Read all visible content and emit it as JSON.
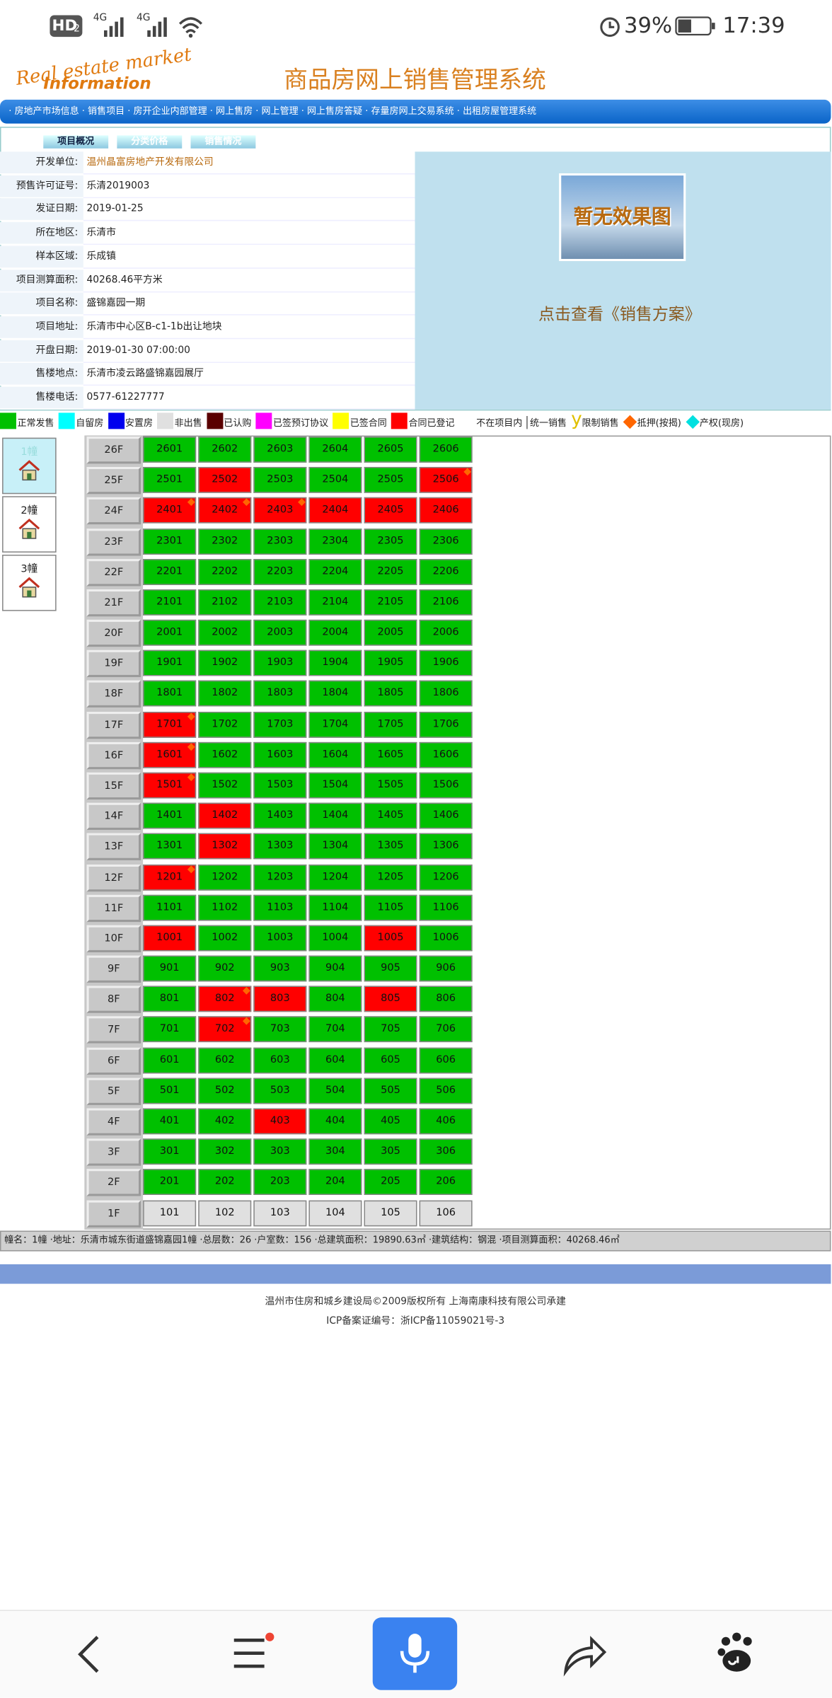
{
  "status_bar": {
    "hd": "HD",
    "sim": "2",
    "net1": "4G",
    "net2": "4G",
    "battery": "39%",
    "time": "17:39"
  },
  "header": {
    "logo_top": "Real estate market",
    "logo_bottom": "Information",
    "title": "商品房网上销售管理系统"
  },
  "nav": "· 房地产市场信息 · 销售项目 · 房开企业内部管理 · 网上售房 · 网上管理 · 网上售房答疑 · 存量房网上交易系统 · 出租房屋管理系统",
  "tabs": [
    "项目概况",
    "分类价格",
    "销售情况"
  ],
  "info": [
    [
      "开发单位:",
      "温州晶富房地产开发有限公司"
    ],
    [
      "预售许可证号:",
      "乐清2019003"
    ],
    [
      "发证日期:",
      "2019-01-25"
    ],
    [
      "所在地区:",
      "乐清市"
    ],
    [
      "样本区域:",
      "乐成镇"
    ],
    [
      "项目测算面积:",
      "40268.46平方米"
    ],
    [
      "项目名称:",
      "盛锦嘉园一期"
    ],
    [
      "项目地址:",
      "乐清市中心区B-c1-1b出让地块"
    ],
    [
      "开盘日期:",
      "2019-01-30 07:00:00"
    ],
    [
      "售楼地点:",
      "乐清市凌云路盛锦嘉园展厅"
    ],
    [
      "售楼电话:",
      "0577-61227777"
    ]
  ],
  "effect_image": "暂无效果图",
  "sale_plan_link": "点击查看《销售方案》",
  "legend": [
    {
      "label": "正常发售",
      "color": "#00c000"
    },
    {
      "label": "自留房",
      "color": "#00ffff"
    },
    {
      "label": "安置房",
      "color": "#0000ee"
    },
    {
      "label": "非出售",
      "color": "#e0e0e0"
    },
    {
      "label": "已认购",
      "color": "#5a0000"
    },
    {
      "label": "已签预订协议",
      "color": "#ff00ff"
    },
    {
      "label": "已签合同",
      "color": "#ffff00"
    },
    {
      "label": "合同已登记",
      "color": "#ff0000"
    },
    {
      "label": "不在项目内",
      "color": "#ffffff"
    },
    {
      "label": "统一销售"
    },
    {
      "label": "限制销售",
      "glyph": "y",
      "color": "#e0c000"
    },
    {
      "label": "抵押(按揭)",
      "diamond": "#ff6600"
    },
    {
      "label": "产权(现房)",
      "diamond": "#00e0e0"
    }
  ],
  "buildings": [
    "1幢",
    "2幢",
    "3幢"
  ],
  "floors": [
    {
      "floor": "26F",
      "units": [
        {
          "no": "2601",
          "status": 0
        },
        {
          "no": "2602",
          "status": 0
        },
        {
          "no": "2603",
          "status": 0
        },
        {
          "no": "2604",
          "status": 0
        },
        {
          "no": "2605",
          "status": 0
        },
        {
          "no": "2606",
          "status": 0
        }
      ]
    },
    {
      "floor": "25F",
      "units": [
        {
          "no": "2501",
          "status": 0
        },
        {
          "no": "2502",
          "status": 7
        },
        {
          "no": "2503",
          "status": 0
        },
        {
          "no": "2504",
          "status": 0
        },
        {
          "no": "2505",
          "status": 0
        },
        {
          "no": "2506",
          "status": 7,
          "pledged": true
        }
      ]
    },
    {
      "floor": "24F",
      "units": [
        {
          "no": "2401",
          "status": 7,
          "pledged": true
        },
        {
          "no": "2402",
          "status": 7,
          "pledged": true
        },
        {
          "no": "2403",
          "status": 7,
          "pledged": true
        },
        {
          "no": "2404",
          "status": 7
        },
        {
          "no": "2405",
          "status": 7
        },
        {
          "no": "2406",
          "status": 7
        }
      ]
    },
    {
      "floor": "23F",
      "units": [
        {
          "no": "2301",
          "status": 0
        },
        {
          "no": "2302",
          "status": 0
        },
        {
          "no": "2303",
          "status": 0
        },
        {
          "no": "2304",
          "status": 0
        },
        {
          "no": "2305",
          "status": 0
        },
        {
          "no": "2306",
          "status": 0
        }
      ]
    },
    {
      "floor": "22F",
      "units": [
        {
          "no": "2201",
          "status": 0
        },
        {
          "no": "2202",
          "status": 0
        },
        {
          "no": "2203",
          "status": 0
        },
        {
          "no": "2204",
          "status": 0
        },
        {
          "no": "2205",
          "status": 0
        },
        {
          "no": "2206",
          "status": 0
        }
      ]
    },
    {
      "floor": "21F",
      "units": [
        {
          "no": "2101",
          "status": 0
        },
        {
          "no": "2102",
          "status": 0
        },
        {
          "no": "2103",
          "status": 0
        },
        {
          "no": "2104",
          "status": 0
        },
        {
          "no": "2105",
          "status": 0
        },
        {
          "no": "2106",
          "status": 0
        }
      ]
    },
    {
      "floor": "20F",
      "units": [
        {
          "no": "2001",
          "status": 0
        },
        {
          "no": "2002",
          "status": 0
        },
        {
          "no": "2003",
          "status": 0
        },
        {
          "no": "2004",
          "status": 0
        },
        {
          "no": "2005",
          "status": 0
        },
        {
          "no": "2006",
          "status": 0
        }
      ]
    },
    {
      "floor": "19F",
      "units": [
        {
          "no": "1901",
          "status": 0
        },
        {
          "no": "1902",
          "status": 0
        },
        {
          "no": "1903",
          "status": 0
        },
        {
          "no": "1904",
          "status": 0
        },
        {
          "no": "1905",
          "status": 0
        },
        {
          "no": "1906",
          "status": 0
        }
      ]
    },
    {
      "floor": "18F",
      "units": [
        {
          "no": "1801",
          "status": 0
        },
        {
          "no": "1802",
          "status": 0
        },
        {
          "no": "1803",
          "status": 0
        },
        {
          "no": "1804",
          "status": 0
        },
        {
          "no": "1805",
          "status": 0
        },
        {
          "no": "1806",
          "status": 0
        }
      ]
    },
    {
      "floor": "17F",
      "units": [
        {
          "no": "1701",
          "status": 7,
          "pledged": true
        },
        {
          "no": "1702",
          "status": 0
        },
        {
          "no": "1703",
          "status": 0
        },
        {
          "no": "1704",
          "status": 0
        },
        {
          "no": "1705",
          "status": 0
        },
        {
          "no": "1706",
          "status": 0
        }
      ]
    },
    {
      "floor": "16F",
      "units": [
        {
          "no": "1601",
          "status": 7,
          "pledged": true
        },
        {
          "no": "1602",
          "status": 0
        },
        {
          "no": "1603",
          "status": 0
        },
        {
          "no": "1604",
          "status": 0
        },
        {
          "no": "1605",
          "status": 0
        },
        {
          "no": "1606",
          "status": 0
        }
      ]
    },
    {
      "floor": "15F",
      "units": [
        {
          "no": "1501",
          "status": 7,
          "pledged": true
        },
        {
          "no": "1502",
          "status": 0
        },
        {
          "no": "1503",
          "status": 0
        },
        {
          "no": "1504",
          "status": 0
        },
        {
          "no": "1505",
          "status": 0
        },
        {
          "no": "1506",
          "status": 0
        }
      ]
    },
    {
      "floor": "14F",
      "units": [
        {
          "no": "1401",
          "status": 0
        },
        {
          "no": "1402",
          "status": 7
        },
        {
          "no": "1403",
          "status": 0
        },
        {
          "no": "1404",
          "status": 0
        },
        {
          "no": "1405",
          "status": 0
        },
        {
          "no": "1406",
          "status": 0
        }
      ]
    },
    {
      "floor": "13F",
      "units": [
        {
          "no": "1301",
          "status": 0
        },
        {
          "no": "1302",
          "status": 7
        },
        {
          "no": "1303",
          "status": 0
        },
        {
          "no": "1304",
          "status": 0
        },
        {
          "no": "1305",
          "status": 0
        },
        {
          "no": "1306",
          "status": 0
        }
      ]
    },
    {
      "floor": "12F",
      "units": [
        {
          "no": "1201",
          "status": 7,
          "pledged": true
        },
        {
          "no": "1202",
          "status": 0
        },
        {
          "no": "1203",
          "status": 0
        },
        {
          "no": "1204",
          "status": 0
        },
        {
          "no": "1205",
          "status": 0
        },
        {
          "no": "1206",
          "status": 0
        }
      ]
    },
    {
      "floor": "11F",
      "units": [
        {
          "no": "1101",
          "status": 0
        },
        {
          "no": "1102",
          "status": 0
        },
        {
          "no": "1103",
          "status": 0
        },
        {
          "no": "1104",
          "status": 0
        },
        {
          "no": "1105",
          "status": 0
        },
        {
          "no": "1106",
          "status": 0
        }
      ]
    },
    {
      "floor": "10F",
      "units": [
        {
          "no": "1001",
          "status": 7
        },
        {
          "no": "1002",
          "status": 0
        },
        {
          "no": "1003",
          "status": 0
        },
        {
          "no": "1004",
          "status": 0
        },
        {
          "no": "1005",
          "status": 7
        },
        {
          "no": "1006",
          "status": 0
        }
      ]
    },
    {
      "floor": "9F",
      "units": [
        {
          "no": "901",
          "status": 0
        },
        {
          "no": "902",
          "status": 0
        },
        {
          "no": "903",
          "status": 0
        },
        {
          "no": "904",
          "status": 0
        },
        {
          "no": "905",
          "status": 0
        },
        {
          "no": "906",
          "status": 0
        }
      ]
    },
    {
      "floor": "8F",
      "units": [
        {
          "no": "801",
          "status": 0
        },
        {
          "no": "802",
          "status": 7,
          "pledged": true
        },
        {
          "no": "803",
          "status": 7
        },
        {
          "no": "804",
          "status": 0
        },
        {
          "no": "805",
          "status": 7
        },
        {
          "no": "806",
          "status": 0
        }
      ]
    },
    {
      "floor": "7F",
      "units": [
        {
          "no": "701",
          "status": 0
        },
        {
          "no": "702",
          "status": 7,
          "pledged": true
        },
        {
          "no": "703",
          "status": 0
        },
        {
          "no": "704",
          "status": 0
        },
        {
          "no": "705",
          "status": 0
        },
        {
          "no": "706",
          "status": 0
        }
      ]
    },
    {
      "floor": "6F",
      "units": [
        {
          "no": "601",
          "status": 0
        },
        {
          "no": "602",
          "status": 0
        },
        {
          "no": "603",
          "status": 0
        },
        {
          "no": "604",
          "status": 0
        },
        {
          "no": "605",
          "status": 0
        },
        {
          "no": "606",
          "status": 0
        }
      ]
    },
    {
      "floor": "5F",
      "units": [
        {
          "no": "501",
          "status": 0
        },
        {
          "no": "502",
          "status": 0
        },
        {
          "no": "503",
          "status": 0
        },
        {
          "no": "504",
          "status": 0
        },
        {
          "no": "505",
          "status": 0
        },
        {
          "no": "506",
          "status": 0
        }
      ]
    },
    {
      "floor": "4F",
      "units": [
        {
          "no": "401",
          "status": 0
        },
        {
          "no": "402",
          "status": 0
        },
        {
          "no": "403",
          "status": 7
        },
        {
          "no": "404",
          "status": 0
        },
        {
          "no": "405",
          "status": 0
        },
        {
          "no": "406",
          "status": 0
        }
      ]
    },
    {
      "floor": "3F",
      "units": [
        {
          "no": "301",
          "status": 0
        },
        {
          "no": "302",
          "status": 0
        },
        {
          "no": "303",
          "status": 0
        },
        {
          "no": "304",
          "status": 0
        },
        {
          "no": "305",
          "status": 0
        },
        {
          "no": "306",
          "status": 0
        }
      ]
    },
    {
      "floor": "2F",
      "units": [
        {
          "no": "201",
          "status": 0
        },
        {
          "no": "202",
          "status": 0
        },
        {
          "no": "203",
          "status": 0
        },
        {
          "no": "204",
          "status": 0
        },
        {
          "no": "205",
          "status": 0
        },
        {
          "no": "206",
          "status": 0
        }
      ]
    },
    {
      "floor": "1F",
      "units": [
        {
          "no": "101",
          "status": 3
        },
        {
          "no": "102",
          "status": 3
        },
        {
          "no": "103",
          "status": 3
        },
        {
          "no": "104",
          "status": 3
        },
        {
          "no": "105",
          "status": 3
        },
        {
          "no": "106",
          "status": 3
        }
      ]
    }
  ],
  "building_info": "幢名：1幢 ·地址：乐清市城东街道盛锦嘉园1幢 ·总层数：26 ·户室数：156 ·总建筑面积：19890.63㎡ ·建筑结构：钢混 ·项目测算面积：40268.46㎡",
  "footer": {
    "line1": "温州市住房和城乡建设局©2009版权所有  上海南康科技有限公司承建",
    "line2": "ICP备案证编号：浙ICP备11059021号-3"
  }
}
